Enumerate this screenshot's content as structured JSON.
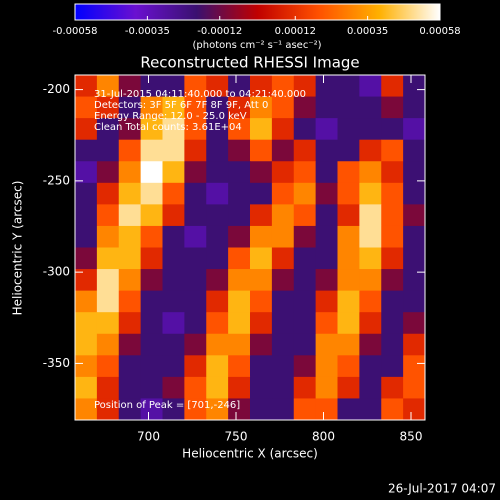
{
  "chart_data": {
    "type": "heatmap",
    "title": "Reconstructed RHESSI Image",
    "xlabel": "Heliocentric X (arcsec)",
    "ylabel": "Heliocentric Y (arcsec)",
    "xlim": [
      658,
      858
    ],
    "ylim": [
      -381,
      -192
    ],
    "xticks": [
      700,
      750,
      800,
      850
    ],
    "yticks": [
      -200,
      -250,
      -300,
      -350
    ],
    "colorbar": {
      "lim": [
        -0.00058,
        0.00058
      ],
      "ticks": [
        -0.00058,
        -0.00035,
        -0.00012,
        0.00012,
        0.00035,
        0.00058
      ],
      "label": "(photons cm⁻² s⁻¹ asec⁻²)",
      "colors": [
        "#0000ff",
        "#6a10d0",
        "#3a1070",
        "#c00000",
        "#ff5000",
        "#ffb000",
        "#ffffff"
      ]
    },
    "annotations": [
      "31-Jul-2015 04:11:40.000 to 04:21:40.000",
      "Detectors: 3F 5F 6F 7F 8F 9F, Att 0",
      "Energy Range: 12.0 - 25.0 keV",
      "Clean     Total counts: 3.61E+04"
    ],
    "peak_label": "Position of Peak = [701,-246]",
    "timestamp": "26-Jul-2017 04:07",
    "z": [
      [
        0.0001,
        0.0003,
        -0.0001,
        -0.0002,
        -0.0002,
        0.0002,
        0.0001,
        -0.0002,
        0.0001,
        0.0002,
        0.0001,
        -0.0002,
        -0.0002,
        -0.0003,
        0.0001,
        -0.0002
      ],
      [
        0.0002,
        0.0001,
        -0.0002,
        0.0003,
        0.0004,
        0.0002,
        -0.0002,
        0.0001,
        0.0003,
        0.0002,
        -0.0001,
        -0.0002,
        -0.0002,
        -0.0002,
        -0.0001,
        -0.0002
      ],
      [
        0.0001,
        -0.0002,
        -0.0001,
        0.0004,
        0.0005,
        0.0002,
        -0.0002,
        0.0002,
        0.0004,
        0.0001,
        -0.0002,
        -0.0003,
        -0.0002,
        -0.0002,
        -0.0002,
        -0.0003
      ],
      [
        -0.0002,
        -0.0002,
        0.0002,
        0.0005,
        0.0005,
        0.0001,
        -0.0002,
        -0.0001,
        0.0002,
        -0.0001,
        0.0001,
        -0.0002,
        -0.0002,
        0.0001,
        0.0002,
        -0.0002
      ],
      [
        -0.0003,
        -0.0001,
        0.0003,
        0.00058,
        0.0004,
        -0.0001,
        -0.0002,
        -0.0002,
        -0.0001,
        0.0001,
        0.0002,
        -0.0002,
        0.0002,
        0.0003,
        0.0001,
        -0.0002
      ],
      [
        -0.0002,
        0.0001,
        0.0004,
        0.0005,
        0.0002,
        -0.0002,
        -0.0003,
        -0.0002,
        -0.0002,
        0.0002,
        0.0003,
        -0.0001,
        0.0002,
        0.0004,
        0.0002,
        -0.0002
      ],
      [
        -0.0002,
        0.0002,
        0.0005,
        0.0004,
        0.0001,
        -0.0002,
        -0.0002,
        -0.0002,
        0.0001,
        0.0003,
        0.0002,
        -0.0002,
        0.0001,
        0.0005,
        0.0002,
        -0.0001
      ],
      [
        -0.0002,
        0.0003,
        0.0004,
        0.0002,
        -0.0002,
        -0.0003,
        -0.0002,
        -0.0001,
        0.0003,
        0.0003,
        -0.0001,
        -0.0002,
        0.0003,
        0.0005,
        0.0002,
        -0.0002
      ],
      [
        -0.0001,
        0.0004,
        0.0004,
        0.0001,
        -0.0002,
        -0.0002,
        -0.0002,
        0.0002,
        0.0004,
        0.0001,
        -0.0002,
        -0.0002,
        0.0003,
        0.0004,
        0.0001,
        -0.0002
      ],
      [
        0.0001,
        0.0005,
        0.0003,
        -0.0001,
        -0.0002,
        -0.0002,
        -0.0001,
        0.0003,
        0.0003,
        -0.0001,
        -0.0002,
        -0.0001,
        0.0003,
        0.0003,
        -0.0001,
        -0.0002
      ],
      [
        0.0003,
        0.0005,
        0.0002,
        -0.0002,
        -0.0002,
        -0.0002,
        0.0001,
        0.0004,
        0.0002,
        -0.0002,
        -0.0002,
        0.0001,
        0.0004,
        0.0002,
        -0.0002,
        -0.0002
      ],
      [
        0.0004,
        0.0004,
        0.0001,
        -0.0002,
        -0.0003,
        -0.0002,
        0.0002,
        0.0004,
        0.0001,
        -0.0002,
        -0.0002,
        0.0002,
        0.0004,
        0.0001,
        -0.0002,
        -0.0001
      ],
      [
        0.0004,
        0.0003,
        -0.0001,
        -0.0002,
        -0.0002,
        -0.0001,
        0.0003,
        0.0003,
        -0.0001,
        -0.0002,
        -0.0002,
        0.0003,
        0.0003,
        -0.0001,
        -0.0002,
        0.0001
      ],
      [
        0.0003,
        0.0002,
        -0.0002,
        -0.0002,
        -0.0002,
        0.0001,
        0.0004,
        0.0002,
        -0.0002,
        -0.0002,
        -0.0001,
        0.0003,
        0.0002,
        -0.0002,
        -0.0002,
        0.0002
      ],
      [
        0.0004,
        0.0001,
        -0.0002,
        -0.0002,
        -0.0001,
        0.0002,
        0.0004,
        0.0001,
        -0.0002,
        -0.0002,
        0.0001,
        0.0003,
        0.0001,
        -0.0002,
        0.0001,
        0.0002
      ],
      [
        0.0003,
        0.0001,
        -0.0002,
        -0.0003,
        -0.0002,
        0.0002,
        0.0003,
        -0.0001,
        -0.0002,
        -0.0002,
        0.0002,
        0.0002,
        -0.0002,
        -0.0002,
        0.0002,
        0.0001
      ]
    ]
  }
}
